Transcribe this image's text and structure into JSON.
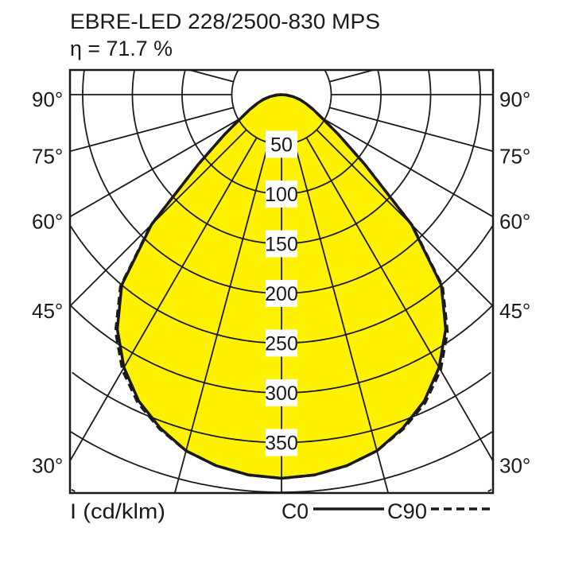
{
  "chart_data": {
    "type": "polar",
    "title": "EBRE-LED 228/2500-830 MPS",
    "subtitle": "η = 71.7 %",
    "unit_label": "I (cd/klm)",
    "radial_ticks": [
      50,
      100,
      150,
      200,
      250,
      300,
      350
    ],
    "angle_labels": [
      "90°",
      "75°",
      "60°",
      "45°",
      "30°"
    ],
    "angle_label_values": [
      90,
      75,
      60,
      45,
      30
    ],
    "angle_step": 15,
    "fill_color": "#fff200",
    "series": [
      {
        "name": "C0",
        "style": "solid",
        "angles": [
          0,
          5,
          10,
          15,
          20,
          25,
          30,
          35,
          40,
          45,
          50,
          55,
          60,
          65,
          70,
          75,
          80,
          85,
          90
        ],
        "values": [
          386,
          384,
          379,
          371,
          357,
          340,
          317,
          288,
          250,
          185,
          110,
          70,
          47,
          35,
          26,
          19,
          12,
          5,
          0
        ]
      },
      {
        "name": "C90",
        "style": "dashed",
        "angles": [
          0,
          5,
          10,
          15,
          20,
          25,
          30,
          35,
          40,
          45,
          50,
          55,
          60,
          65,
          70,
          75,
          80,
          85,
          90
        ],
        "values": [
          386,
          384,
          379,
          371,
          358,
          342,
          320,
          291,
          252,
          186,
          110,
          70,
          47,
          35,
          26,
          19,
          12,
          5,
          0
        ]
      }
    ],
    "legend": {
      "c0": "C0",
      "c90": "C90"
    }
  }
}
